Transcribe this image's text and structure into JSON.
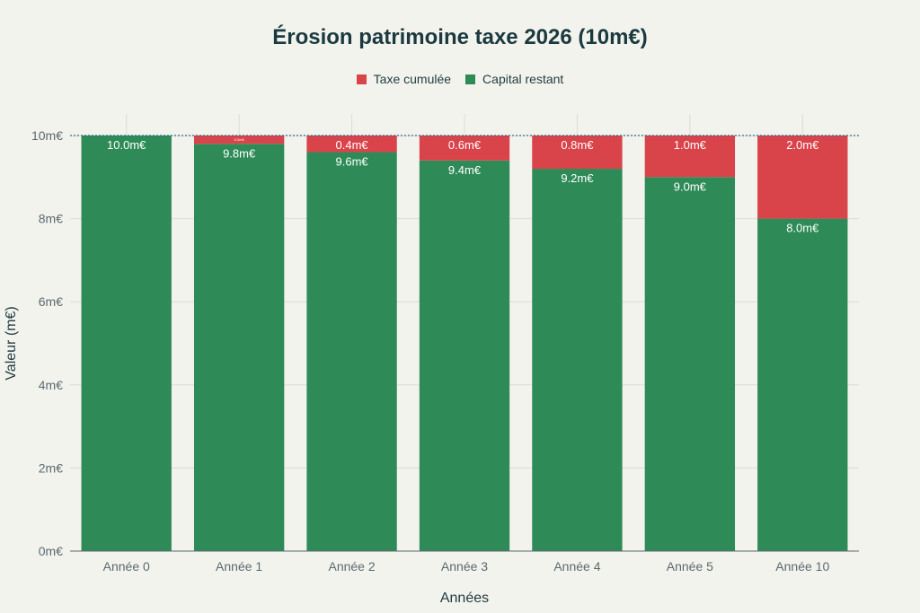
{
  "chart_data": {
    "type": "bar",
    "stacked": true,
    "title": "Érosion patrimoine taxe 2026 (10m€)",
    "xlabel": "Années",
    "ylabel": "Valeur (m€)",
    "categories": [
      "Année 0",
      "Année 1",
      "Année 2",
      "Année 3",
      "Année 4",
      "Année 5",
      "Année 10"
    ],
    "ylim": [
      0,
      10
    ],
    "yticks": [
      0,
      2,
      4,
      6,
      8,
      10
    ],
    "ytick_labels": [
      "0m€",
      "2m€",
      "4m€",
      "6m€",
      "8m€",
      "10m€"
    ],
    "reference_line": 10,
    "grid": true,
    "legend_position": "top-center",
    "series": [
      {
        "name": "Capital restant",
        "color": "#2e8b57",
        "values": [
          10.0,
          9.8,
          9.6,
          9.4,
          9.2,
          9.0,
          8.0
        ],
        "labels": [
          "10.0m€",
          "9.8m€",
          "9.6m€",
          "9.4m€",
          "9.2m€",
          "9.0m€",
          "8.0m€"
        ]
      },
      {
        "name": "Taxe cumulée",
        "color": "#d9434a",
        "values": [
          0.0,
          0.2,
          0.4,
          0.6,
          0.8,
          1.0,
          2.0
        ],
        "labels": [
          "",
          "0.2m€",
          "0.4m€",
          "0.6m€",
          "0.8m€",
          "1.0m€",
          "2.0m€"
        ]
      }
    ],
    "legend_order": [
      "Taxe cumulée",
      "Capital restant"
    ]
  }
}
